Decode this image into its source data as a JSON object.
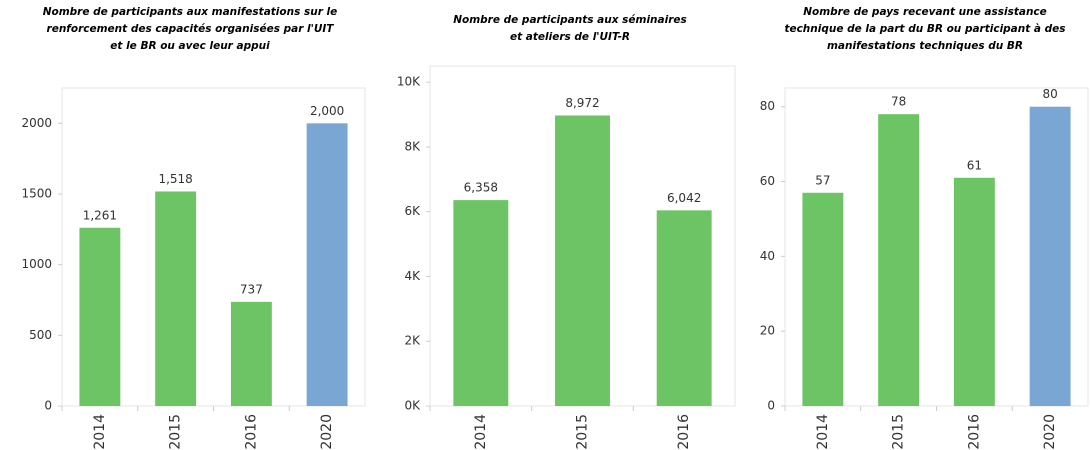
{
  "chart_data": [
    {
      "type": "bar",
      "title": [
        "Nombre de participants aux manifestations sur le",
        "renforcement des capacités organisées par l'UIT",
        "et le BR ou avec leur appui"
      ],
      "categories": [
        "2014",
        "2015",
        "2016",
        "2020"
      ],
      "values": [
        1261,
        1518,
        737,
        2000
      ],
      "value_labels": [
        "1,261",
        "1,518",
        "737",
        "2,000"
      ],
      "colors": [
        "#6cc464",
        "#6cc464",
        "#6cc464",
        "#7aa6d4"
      ],
      "ylim": [
        0,
        2250
      ],
      "yticks": [
        0,
        500,
        1000,
        1500,
        2000
      ]
    },
    {
      "type": "bar",
      "title": [
        "Nombre de participants aux séminaires",
        "et ateliers de l'UIT-R"
      ],
      "categories": [
        "2014",
        "2015",
        "2016"
      ],
      "values": [
        6358,
        8972,
        6042
      ],
      "value_labels": [
        "6,358",
        "8,972",
        "6,042"
      ],
      "colors": [
        "#6cc464",
        "#6cc464",
        "#6cc464"
      ],
      "ylim": [
        0,
        10500
      ],
      "yticks": [
        {
          "value": 0,
          "label": "0K"
        },
        {
          "value": 2000,
          "label": "2K"
        },
        {
          "value": 4000,
          "label": "4K"
        },
        {
          "value": 6000,
          "label": "6K"
        },
        {
          "value": 8000,
          "label": "8K"
        },
        {
          "value": 10000,
          "label": "10K"
        }
      ]
    },
    {
      "type": "bar",
      "title": [
        "Nombre de pays recevant une assistance",
        "technique de la part du BR ou participant à des",
        "manifestations techniques du BR"
      ],
      "categories": [
        "2014",
        "2015",
        "2016",
        "2020"
      ],
      "values": [
        57,
        78,
        61,
        80
      ],
      "colors": [
        "#6cc464",
        "#6cc464",
        "#6cc464",
        "#7aa6d4"
      ],
      "ylim": [
        0,
        85
      ],
      "yticks": [
        0,
        20,
        40,
        60,
        80
      ]
    }
  ]
}
